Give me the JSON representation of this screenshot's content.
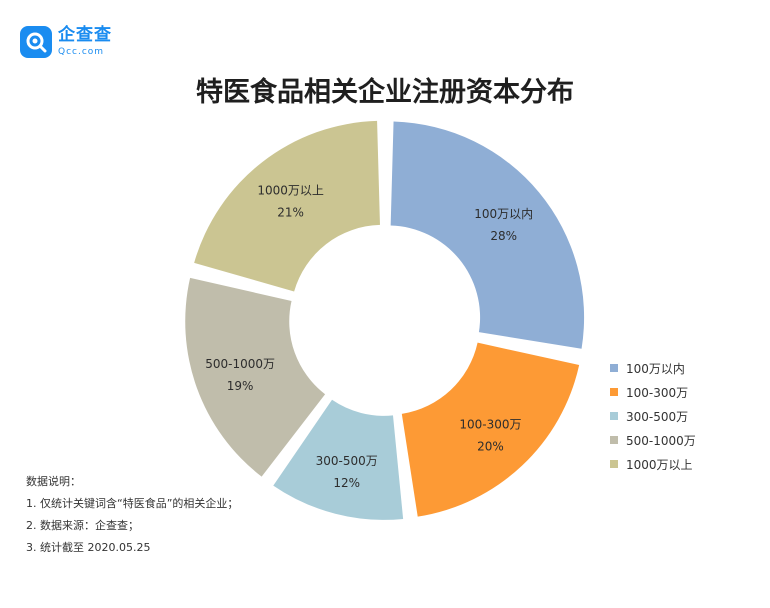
{
  "brand": {
    "name": "企查查",
    "domain": "Qcc.com",
    "color": "#1a8cf0"
  },
  "title": "特医食品相关企业注册资本分布",
  "chart_data": {
    "type": "pie",
    "variant": "donut",
    "title": "特医食品相关企业注册资本分布",
    "slices": [
      {
        "label": "100万以内",
        "value": 28,
        "value_label": "28%",
        "color": "#8faed5"
      },
      {
        "label": "100-300万",
        "value": 20,
        "value_label": "20%",
        "color": "#fd9a35"
      },
      {
        "label": "300-500万",
        "value": 12,
        "value_label": "12%",
        "color": "#a8ccd8"
      },
      {
        "label": "500-1000万",
        "value": 19,
        "value_label": "19%",
        "color": "#c0bdab"
      },
      {
        "label": "1000万以上",
        "value": 21,
        "value_label": "21%",
        "color": "#cbc592"
      }
    ],
    "legend_position": "right"
  },
  "notes": [
    "数据说明：",
    "1. 仅统计关键词含“特医食品”的相关企业；",
    "2. 数据来源：企查查；",
    "3. 统计截至 2020.05.25"
  ]
}
